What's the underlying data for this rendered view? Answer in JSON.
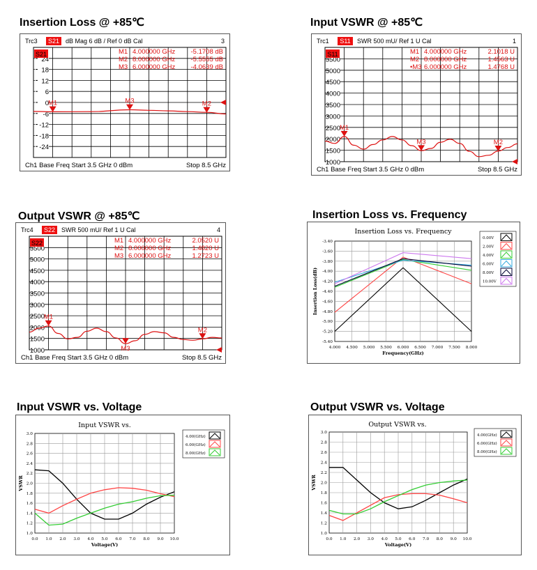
{
  "panels": {
    "p1": {
      "title": "Insertion Loss @ +85℃"
    },
    "p2": {
      "title": "Input VSWR @ +85℃"
    },
    "p3": {
      "title": "Output VSWR @ +85℃"
    },
    "p4": {
      "title": "Insertion Loss vs. Frequency"
    },
    "p5": {
      "title": "Input VSWR vs. Voltage"
    },
    "p6": {
      "title": "Output VSWR vs. Voltage"
    }
  },
  "colors": {
    "vna_trace": "#dd1111",
    "vna_badge": "#ee1111",
    "grid": "#000000"
  },
  "chart_data": [
    {
      "id": "p1",
      "type": "line",
      "header": {
        "trace": "Trc3",
        "param": "S21",
        "rest": "dB Mag  6 dB /  Ref 0 dB   Cal",
        "channel": "3"
      },
      "marker_label": "S21",
      "footer": {
        "left": "Ch1  Base Freq  Start  3.5 GHz   0 dBm",
        "right": "Stop  8.5 GHz"
      },
      "ylim": [
        -30,
        30
      ],
      "yticks": [
        "24",
        "18",
        "12",
        "6",
        "0",
        "-6",
        "-12",
        "-18",
        "-24"
      ],
      "xlim": [
        3.5,
        8.5
      ],
      "trace": [
        [
          3.5,
          -4.9
        ],
        [
          4.0,
          -5.1
        ],
        [
          5.0,
          -5.0
        ],
        [
          6.0,
          -4.0
        ],
        [
          6.5,
          -4.3
        ],
        [
          7.0,
          -4.6
        ],
        [
          7.5,
          -5.0
        ],
        [
          8.0,
          -5.4
        ],
        [
          8.5,
          -6.3
        ]
      ],
      "markers": [
        {
          "id": "M1",
          "freq": "4.000000 GHz",
          "val": "-5.1708 dB",
          "x": 4.0,
          "y": -5.1708,
          "label_pos": "above"
        },
        {
          "id": "M2",
          "freq": "8.000000 GHz",
          "val": "-5.5555 dB",
          "x": 8.0,
          "y": -5.5555,
          "label_pos": "above"
        },
        {
          "id": "M3",
          "freq": "6.000000 GHz",
          "val": "-4.0639 dB",
          "x": 6.0,
          "y": -4.0639,
          "label_pos": "above"
        }
      ],
      "ref_value": 0
    },
    {
      "id": "p2",
      "type": "line",
      "header": {
        "trace": "Trc1",
        "param": "S11",
        "rest": "SWR  500 mU/  Ref 1 U    Cal",
        "channel": "1"
      },
      "marker_label": "S11",
      "footer": {
        "left": "Ch1  Base Freq  Start  3.5 GHz   0 dBm",
        "right": "Stop  8.5 GHz"
      },
      "ylim": [
        1000,
        6000
      ],
      "yticks": [
        "5500",
        "5000",
        "4500",
        "4000",
        "3500",
        "3000",
        "2500",
        "2000",
        "1500",
        "1000"
      ],
      "xlim": [
        3.5,
        8.5
      ],
      "trace": [
        [
          3.5,
          1.9
        ],
        [
          3.75,
          1.8
        ],
        [
          4.0,
          2.1
        ],
        [
          4.25,
          1.72
        ],
        [
          4.5,
          1.55
        ],
        [
          4.75,
          1.75
        ],
        [
          5.0,
          1.95
        ],
        [
          5.25,
          2.1
        ],
        [
          5.5,
          1.95
        ],
        [
          5.75,
          1.7
        ],
        [
          6.0,
          1.48
        ],
        [
          6.25,
          1.58
        ],
        [
          6.5,
          1.85
        ],
        [
          6.75,
          1.98
        ],
        [
          7.0,
          1.8
        ],
        [
          7.25,
          1.45
        ],
        [
          7.5,
          1.22
        ],
        [
          7.75,
          1.28
        ],
        [
          8.0,
          1.46
        ],
        [
          8.25,
          1.62
        ],
        [
          8.5,
          1.78
        ]
      ],
      "trace_scale": 1000,
      "markers": [
        {
          "id": "M1",
          "freq": "4.000000 GHz",
          "val": "2.1018  U",
          "x": 4.0,
          "y": 2.1018,
          "label_pos": "above"
        },
        {
          "id": "M2",
          "freq": "8.000000 GHz",
          "val": "1.4563  U",
          "x": 8.0,
          "y": 1.4563,
          "label_pos": "above"
        },
        {
          "id": "•M3",
          "freq": "6.000000 GHz",
          "val": "1.4768  U",
          "x": 6.0,
          "y": 1.4768,
          "label_pos": "above"
        }
      ],
      "ref_value": 1000
    },
    {
      "id": "p3",
      "type": "line",
      "header": {
        "trace": "Trc4",
        "param": "S22",
        "rest": "SWR  500 mU/  Ref 1 U    Cal",
        "channel": "4"
      },
      "marker_label": "S22",
      "footer": {
        "left": "Ch1  Base Freq  Start  3.5 GHz   0 dBm",
        "right": "Stop  8.5 GHz"
      },
      "ylim": [
        1000,
        6000
      ],
      "yticks": [
        "5500",
        "5000",
        "4500",
        "4000",
        "3500",
        "3000",
        "2500",
        "2000",
        "1500",
        "1000"
      ],
      "xlim": [
        3.5,
        8.5
      ],
      "trace": [
        [
          3.5,
          1.78
        ],
        [
          3.75,
          1.95
        ],
        [
          4.0,
          2.05
        ],
        [
          4.25,
          1.72
        ],
        [
          4.5,
          1.48
        ],
        [
          4.75,
          1.55
        ],
        [
          5.0,
          1.82
        ],
        [
          5.25,
          1.95
        ],
        [
          5.5,
          1.8
        ],
        [
          5.75,
          1.52
        ],
        [
          6.0,
          1.27
        ],
        [
          6.25,
          1.4
        ],
        [
          6.5,
          1.68
        ],
        [
          6.75,
          1.8
        ],
        [
          7.0,
          1.75
        ],
        [
          7.25,
          1.55
        ],
        [
          7.5,
          1.45
        ],
        [
          7.75,
          1.42
        ],
        [
          8.0,
          1.48
        ],
        [
          8.25,
          1.55
        ],
        [
          8.5,
          1.52
        ]
      ],
      "trace_scale": 1000,
      "markers": [
        {
          "id": "M1",
          "freq": "4.000000 GHz",
          "val": "2.0520  U",
          "x": 4.0,
          "y": 2.052,
          "label_pos": "above"
        },
        {
          "id": "M2",
          "freq": "8.000000 GHz",
          "val": "1.4820  U",
          "x": 8.0,
          "y": 1.482,
          "label_pos": "above"
        },
        {
          "id": "M3",
          "freq": "6.000000 GHz",
          "val": "1.2723  U",
          "x": 6.0,
          "y": 1.2723,
          "label_pos": "below"
        }
      ],
      "ref_value": 1000
    },
    {
      "id": "p4",
      "type": "line",
      "title": "Insertion Loss vs. Frequency",
      "xlabel": "Frequency(GHz)",
      "ylabel": "Insertion Loss(dB)",
      "xlim": [
        4.0,
        8.0
      ],
      "ylim": [
        -5.4,
        -3.4
      ],
      "x": [
        4.0,
        6.0,
        8.0
      ],
      "xticks": [
        "4.000",
        "4.500",
        "5.000",
        "5.500",
        "6.000",
        "6.500",
        "7.000",
        "7.500",
        "8.000"
      ],
      "yticks": [
        "-3.40",
        "-3.60",
        "-3.80",
        "-4.00",
        "-4.20",
        "-4.40",
        "-4.60",
        "-4.80",
        "-5.00",
        "-5.20",
        "-5.40"
      ],
      "series": [
        {
          "name": "0.00V",
          "color": "#000000",
          "values": [
            -5.2,
            -3.93,
            -5.2
          ]
        },
        {
          "name": "2.00V",
          "color": "#ff4444",
          "values": [
            -4.82,
            -3.72,
            -4.25
          ]
        },
        {
          "name": "4.00V",
          "color": "#33cc33",
          "values": [
            -4.32,
            -3.77,
            -3.98
          ]
        },
        {
          "name": "6.00V",
          "color": "#33aadd",
          "values": [
            -4.22,
            -3.78,
            -3.88
          ]
        },
        {
          "name": "8.00V",
          "color": "#000033",
          "values": [
            -4.3,
            -3.75,
            -3.9
          ]
        },
        {
          "name": "10.00V",
          "color": "#cc77ee",
          "values": [
            -4.25,
            -3.63,
            -3.75
          ]
        }
      ]
    },
    {
      "id": "p5",
      "type": "line",
      "title": "Input VSWR vs.",
      "xlabel": "Voltage(V)",
      "ylabel": "VSWR",
      "xlim": [
        0,
        10
      ],
      "ylim": [
        1.0,
        3.0
      ],
      "x": [
        0,
        1,
        2,
        3,
        4,
        5,
        6,
        7,
        8,
        9,
        10
      ],
      "xticks": [
        "0.0",
        "1.0",
        "2.0",
        "3.0",
        "4.0",
        "5.0",
        "6.0",
        "7.0",
        "8.0",
        "9.0",
        "10.0"
      ],
      "yticks": [
        "3.0",
        "2.8",
        "2.6",
        "2.4",
        "2.2",
        "2.0",
        "1.8",
        "1.6",
        "1.4",
        "1.2",
        "1.0"
      ],
      "series": [
        {
          "name": "4.00(GHz)",
          "color": "#000000",
          "values": [
            2.27,
            2.25,
            2.0,
            1.68,
            1.4,
            1.28,
            1.28,
            1.4,
            1.58,
            1.72,
            1.83
          ]
        },
        {
          "name": "6.00(GHz)",
          "color": "#ff4444",
          "values": [
            1.48,
            1.4,
            1.55,
            1.68,
            1.8,
            1.87,
            1.91,
            1.9,
            1.86,
            1.79,
            1.73
          ]
        },
        {
          "name": "8.00(GHz)",
          "color": "#33cc33",
          "values": [
            1.4,
            1.16,
            1.18,
            1.3,
            1.4,
            1.5,
            1.58,
            1.63,
            1.7,
            1.75,
            1.76
          ]
        }
      ]
    },
    {
      "id": "p6",
      "type": "line",
      "title": "Output VSWR vs.",
      "xlabel": "Voltage(V)",
      "ylabel": "VSWR",
      "xlim": [
        0,
        10
      ],
      "ylim": [
        1.0,
        3.0
      ],
      "x": [
        0,
        1,
        2,
        3,
        4,
        5,
        6,
        7,
        8,
        9,
        10
      ],
      "xticks": [
        "0.0",
        "1.0",
        "2.0",
        "3.0",
        "4.0",
        "5.0",
        "6.0",
        "7.0",
        "8.0",
        "9.0",
        "10.0"
      ],
      "yticks": [
        "3.0",
        "2.8",
        "2.6",
        "2.4",
        "2.2",
        "2.0",
        "1.8",
        "1.6",
        "1.4",
        "1.2",
        "1.0"
      ],
      "series": [
        {
          "name": "4.00(GHz)",
          "color": "#000000",
          "values": [
            2.3,
            2.3,
            2.05,
            1.8,
            1.6,
            1.48,
            1.52,
            1.65,
            1.8,
            1.95,
            2.07
          ]
        },
        {
          "name": "6.00(GHz)",
          "color": "#ff4444",
          "values": [
            1.35,
            1.25,
            1.4,
            1.55,
            1.7,
            1.76,
            1.78,
            1.78,
            1.75,
            1.68,
            1.6
          ]
        },
        {
          "name": "8.00(GHz)",
          "color": "#33cc33",
          "values": [
            1.45,
            1.38,
            1.38,
            1.48,
            1.62,
            1.74,
            1.86,
            1.95,
            2.0,
            2.03,
            2.05
          ]
        }
      ]
    }
  ]
}
